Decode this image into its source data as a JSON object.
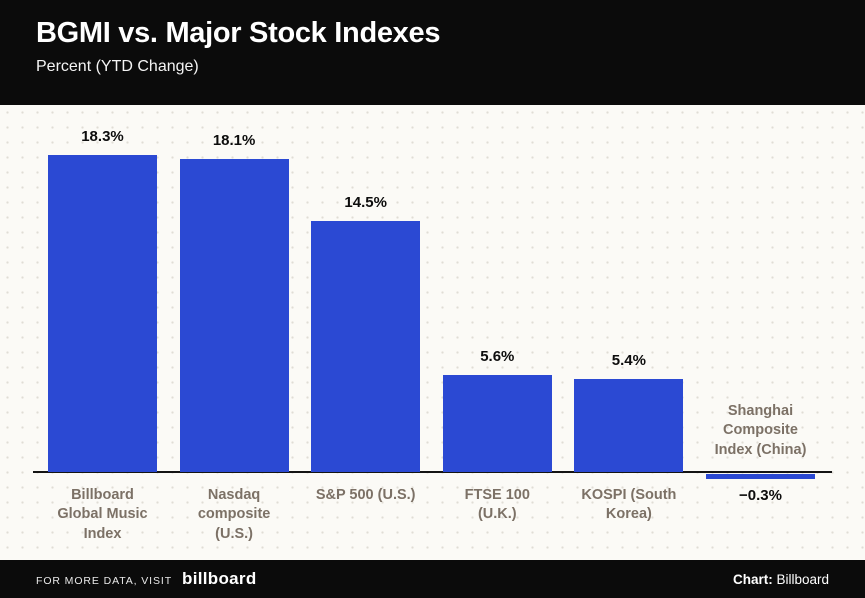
{
  "header": {
    "title": "BGMI vs. Major Stock Indexes",
    "subtitle": "Percent (YTD Change)"
  },
  "chart_data": {
    "type": "bar",
    "title": "BGMI vs. Major Stock Indexes",
    "subtitle": "Percent (YTD Change)",
    "xlabel": "",
    "ylabel": "Percent (YTD Change)",
    "ylim": [
      -1,
      20
    ],
    "grid": "dotted-background",
    "legend": "none",
    "bar_color": "#2b49d3",
    "categories": [
      "Billboard Global Music Index",
      "Nasdaq composite (U.S.)",
      "S&P 500 (U.S.)",
      "FTSE 100 (U.K.)",
      "KOSPI (South Korea)",
      "Shanghai Composite Index (China)"
    ],
    "category_display": [
      "Billboard\nGlobal Music\nIndex",
      "Nasdaq\ncomposite\n(U.S.)",
      "S&P 500 (U.S.)",
      "FTSE 100\n(U.K.)",
      "KOSPI (South\nKorea)",
      "Shanghai\nComposite\nIndex (China)"
    ],
    "values": [
      18.3,
      18.1,
      14.5,
      5.6,
      5.4,
      -0.3
    ],
    "value_labels": [
      "18.3%",
      "18.1%",
      "14.5%",
      "5.6%",
      "5.4%",
      "−0.3%"
    ]
  },
  "footer": {
    "left_text": "FOR MORE DATA, VISIT",
    "logo_text": "billboard",
    "credit_label": "Chart:",
    "credit_value": "Billboard"
  }
}
